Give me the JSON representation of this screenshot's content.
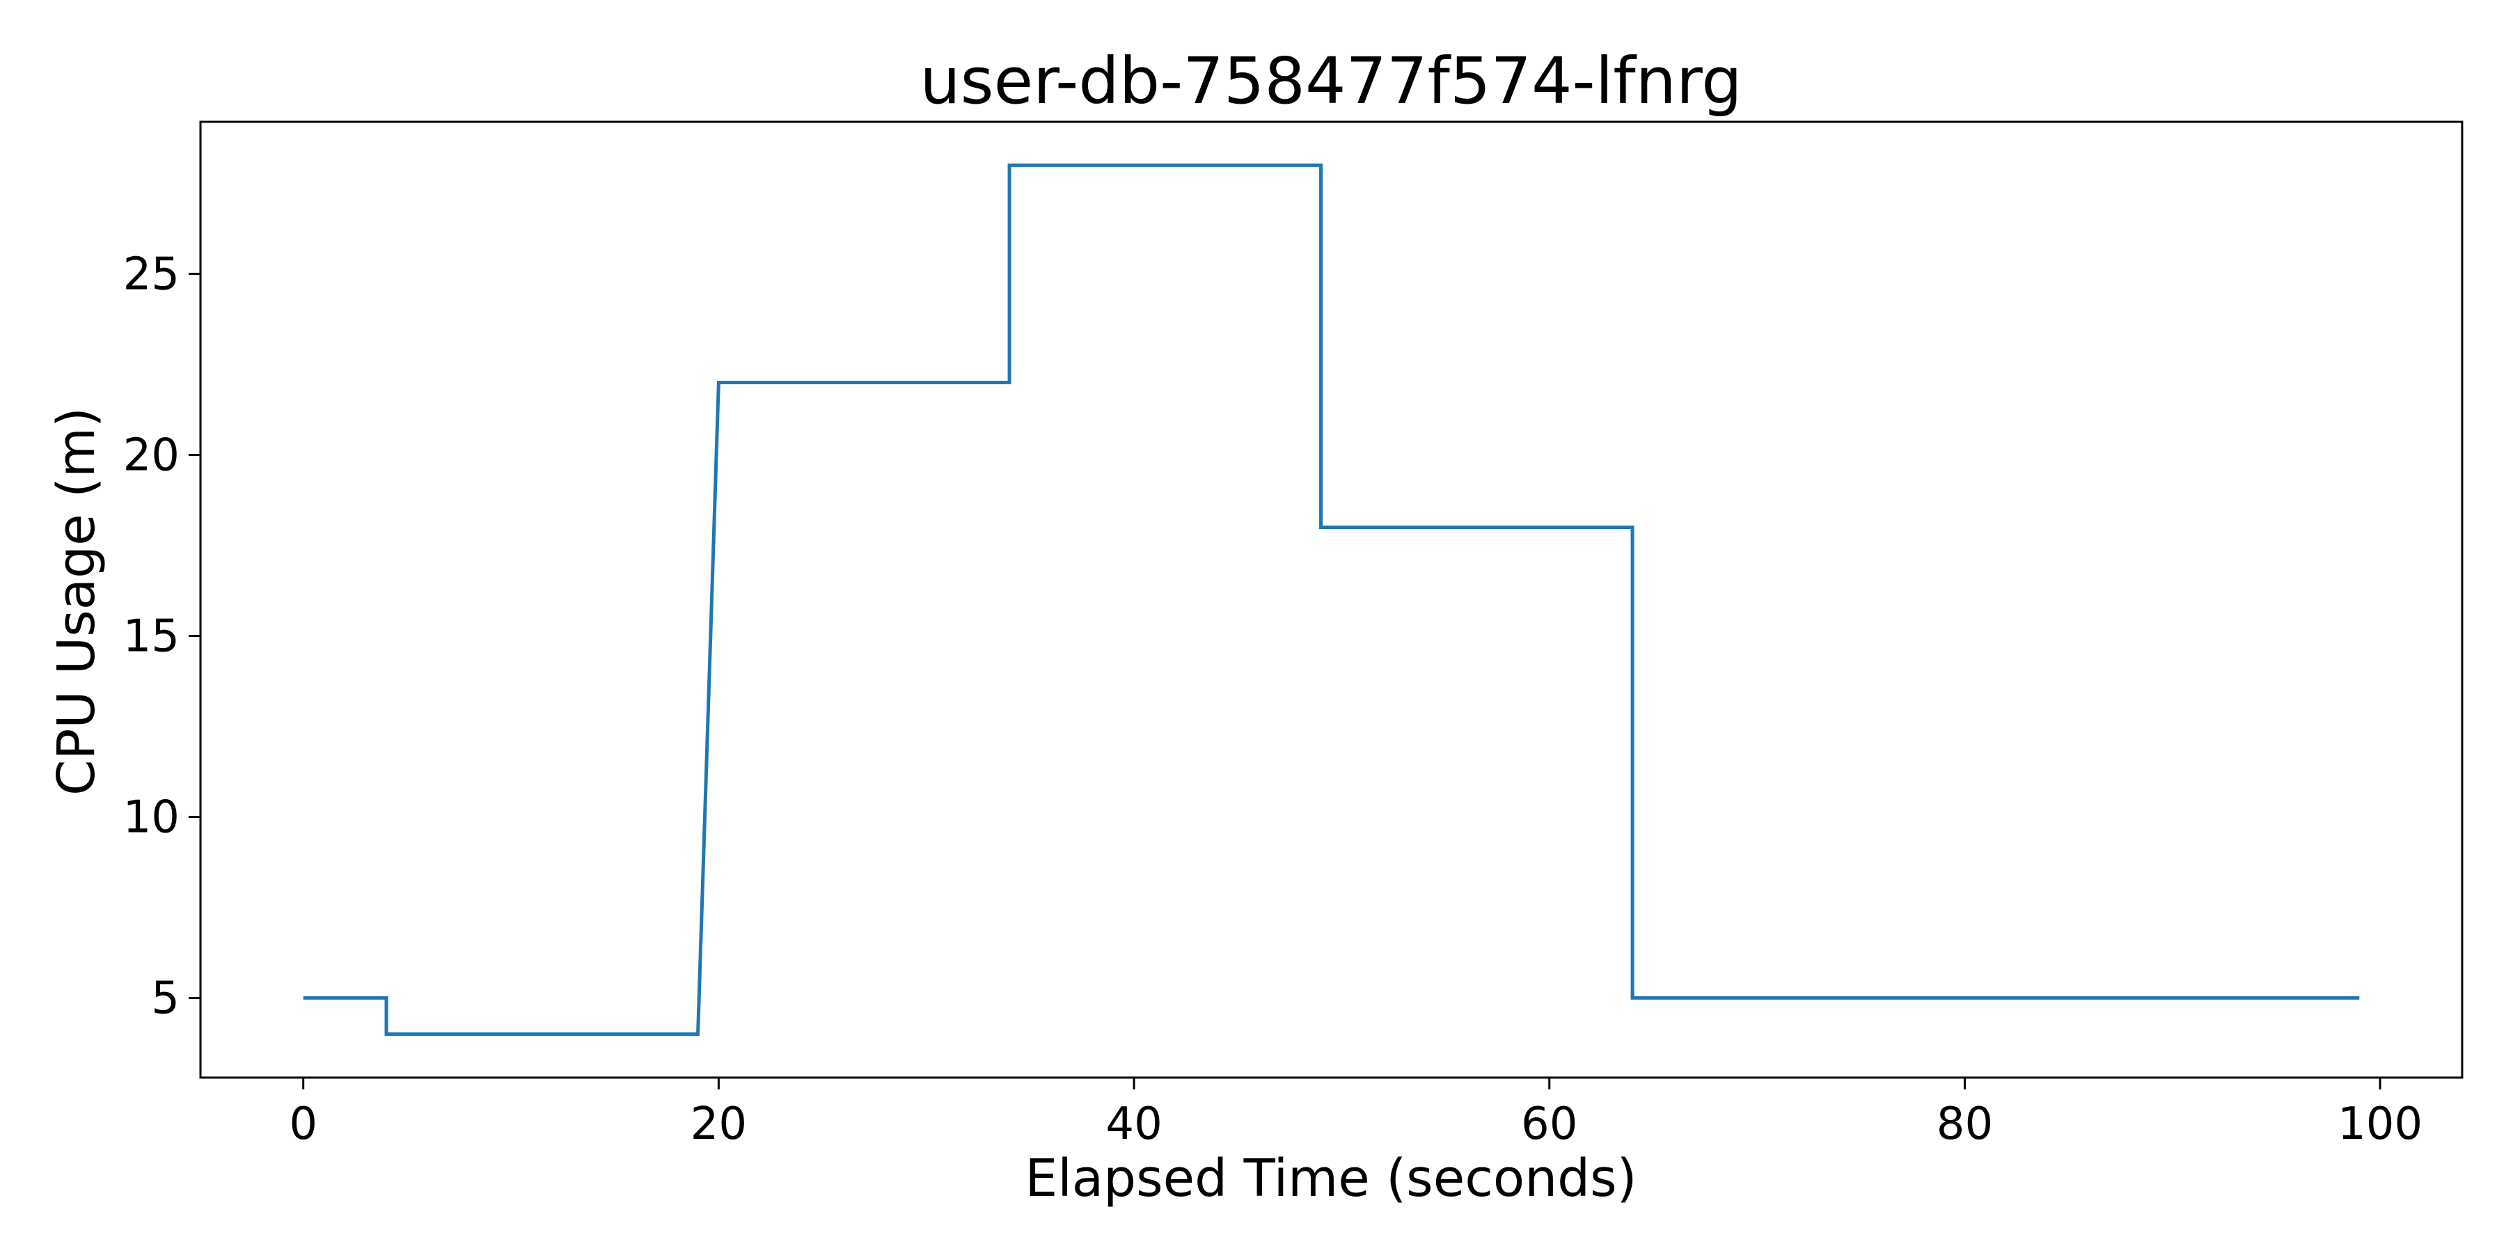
{
  "chart_data": {
    "type": "line",
    "title": "user-db-758477f574-lfnrg",
    "xlabel": "Elapsed Time (seconds)",
    "ylabel": "CPU Usage (m)",
    "xlim": [
      -4.95,
      103.95
    ],
    "ylim": [
      2.8,
      29.2
    ],
    "xticks": [
      0,
      20,
      40,
      60,
      80,
      100
    ],
    "yticks": [
      5,
      10,
      15,
      20,
      25
    ],
    "grid": false,
    "legend": "none",
    "series": [
      {
        "color": "#1f77b4",
        "x": [
          0,
          4,
          4,
          19,
          20,
          34,
          34,
          49,
          49,
          64,
          64,
          99
        ],
        "y": [
          5,
          5,
          4,
          4,
          22,
          22,
          28,
          28,
          18,
          18,
          5,
          5
        ]
      }
    ]
  }
}
